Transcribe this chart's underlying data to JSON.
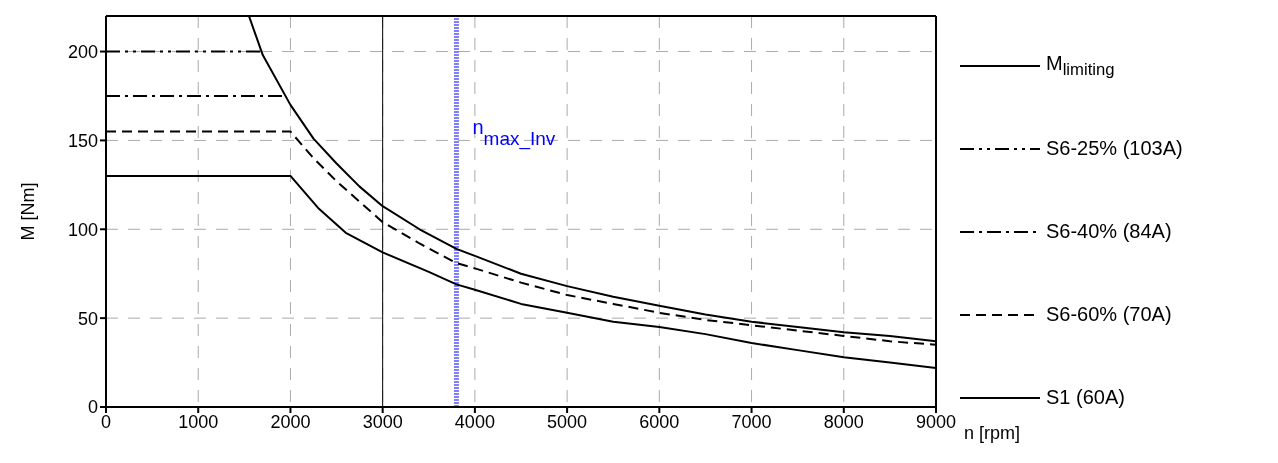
{
  "chart_data": {
    "type": "line",
    "xlabel": "n [rpm]",
    "ylabel": "M [Nm]",
    "xlim": [
      0,
      9000
    ],
    "xticks": [
      0,
      1000,
      2000,
      3000,
      4000,
      5000,
      6000,
      7000,
      8000,
      9000
    ],
    "ylim": [
      0,
      220
    ],
    "yticks": [
      0,
      50,
      100,
      150,
      200
    ],
    "grid": true,
    "legend": "right",
    "marker": "none",
    "series": [
      {
        "name": "M$_{limiting}$",
        "color": "#000000",
        "line_style": "solid",
        "x": [
          1550,
          1700,
          2000,
          2250,
          2500,
          2750,
          3000,
          3400,
          3800,
          4000,
          4500,
          5000,
          5500,
          6000,
          6500,
          7000,
          7500,
          8000,
          8500,
          9000
        ],
        "values": [
          220,
          198,
          170,
          151,
          137,
          124,
          113,
          100,
          89,
          85,
          75,
          68,
          62,
          57,
          52,
          48,
          45,
          42,
          40,
          37
        ]
      },
      {
        "name": "S6-25% (103A)",
        "color": "#000000",
        "line_style": "dashdotdot",
        "x": [
          0,
          1700
        ],
        "values": [
          200,
          200
        ]
      },
      {
        "name": "S6-40% (84A)",
        "color": "#000000",
        "line_style": "dashdot",
        "x": [
          0,
          1950
        ],
        "values": [
          175,
          175
        ]
      },
      {
        "name": "S6-60% (70A)",
        "color": "#000000",
        "line_style": "dashed",
        "x": [
          0,
          2000,
          2250,
          2500,
          3000,
          3400,
          3800,
          4000,
          4500,
          5000,
          5500,
          6000,
          6500,
          7000,
          7500,
          8000,
          8500,
          9000
        ],
        "values": [
          155,
          155,
          140,
          127,
          104,
          92,
          81,
          78,
          70,
          63,
          58,
          53,
          49,
          46,
          43,
          40,
          37,
          35
        ]
      },
      {
        "name": "S1 (60A)",
        "color": "#000000",
        "line_style": "solid",
        "x": [
          0,
          2000,
          2300,
          2600,
          3000,
          3500,
          3800,
          4000,
          4500,
          5000,
          5500,
          6000,
          6500,
          7000,
          7500,
          8000,
          8500,
          9000
        ],
        "values": [
          130,
          130,
          112,
          98,
          87,
          76,
          69,
          66,
          58,
          53,
          48,
          45,
          41,
          36,
          32,
          28,
          25,
          22
        ]
      }
    ],
    "ref_lines": [
      {
        "axis": "x",
        "value": 3000,
        "color": "#000000",
        "line_style": "solid"
      },
      {
        "axis": "x",
        "value": 3800,
        "color": "#8080ff",
        "line_style": "dotted",
        "label": "n$_{max_Inv}$"
      }
    ]
  }
}
